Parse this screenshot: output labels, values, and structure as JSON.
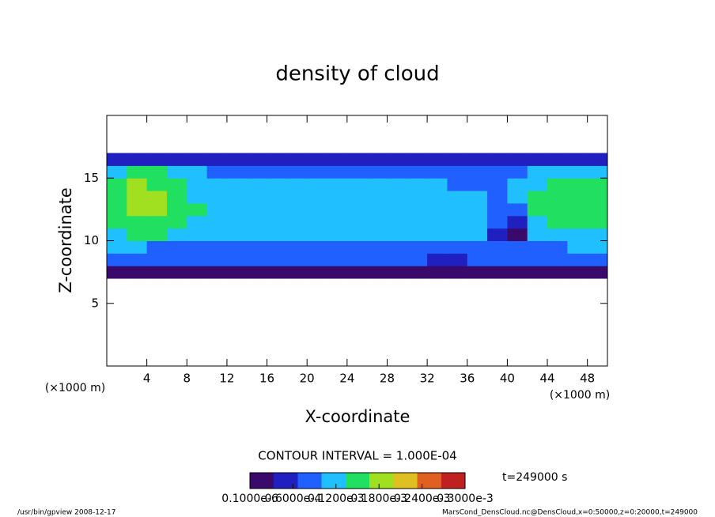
{
  "chart_data": {
    "type": "heatmap",
    "title": "density of cloud",
    "x_label": "X-coordinate",
    "y_label": "Z-coordinate",
    "x_unit": "(×1000 m)",
    "contour_interval": "CONTOUR INTERVAL = 1.000E-04",
    "time": "t=249000 s",
    "footer_left": "/usr/bin/gpview   2008-12-17",
    "footer_right": "MarsCond_DensCloud.nc@DensCloud,x=0:50000,z=0:20000,t=249000",
    "xlim": [
      0,
      50
    ],
    "xticks": [
      4,
      8,
      12,
      16,
      20,
      24,
      28,
      32,
      36,
      40,
      44,
      48
    ],
    "ylim": [
      0,
      20
    ],
    "yticks": [
      5,
      10,
      15
    ],
    "x": [
      1,
      3,
      5,
      7,
      9,
      11,
      13,
      15,
      17,
      19,
      21,
      23,
      25,
      27,
      29,
      31,
      33,
      35,
      37,
      39,
      41,
      43,
      45,
      47,
      49
    ],
    "y": [
      7.5,
      8.5,
      9.5,
      10.5,
      11.5,
      12.5,
      13.5,
      14.5,
      15.5,
      16.5
    ],
    "z": [
      [
        3e-05,
        3e-05,
        3e-05,
        3e-05,
        3e-05,
        3e-05,
        3e-05,
        3e-05,
        3e-05,
        3e-05,
        3e-05,
        3e-05,
        3e-05,
        3e-05,
        3e-05,
        3e-05,
        1e-05,
        2e-05,
        3e-05,
        3e-05,
        3e-05,
        3e-05,
        3e-05,
        3e-05,
        3e-05
      ],
      [
        7e-05,
        7e-05,
        7e-05,
        7e-05,
        7e-05,
        7e-05,
        7e-05,
        7e-05,
        7e-05,
        7e-05,
        7e-05,
        7e-05,
        7e-05,
        7e-05,
        7e-05,
        7e-05,
        5e-05,
        6e-05,
        7e-05,
        7e-05,
        7e-05,
        7e-05,
        7e-05,
        7e-05,
        7e-05
      ],
      [
        0.0001,
        0.0001,
        9e-05,
        9e-05,
        9e-05,
        9e-05,
        9e-05,
        9e-05,
        9e-05,
        9e-05,
        9e-05,
        9e-05,
        9e-05,
        9e-05,
        9e-05,
        9e-05,
        8e-05,
        9e-05,
        9e-05,
        9e-05,
        8e-05,
        9e-05,
        9e-05,
        0.0001,
        0.0001
      ],
      [
        0.00013,
        0.00014,
        0.00014,
        0.00013,
        0.00012,
        0.00011,
        0.00011,
        0.0001,
        0.0001,
        0.0001,
        0.0001,
        0.0001,
        0.00011,
        0.00011,
        0.00011,
        0.0001,
        0.0001,
        0.0001,
        0.0001,
        6e-05,
        3e-05,
        0.0001,
        0.00012,
        0.00013,
        0.00013
      ],
      [
        0.00015,
        0.00016,
        0.00016,
        0.00015,
        0.00013,
        0.00012,
        0.00011,
        0.00011,
        0.00011,
        0.00011,
        0.00012,
        0.00012,
        0.00012,
        0.00012,
        0.00011,
        0.00011,
        0.00011,
        0.0001,
        0.0001,
        8e-05,
        6e-05,
        0.00012,
        0.00014,
        0.00015,
        0.00015
      ],
      [
        0.00016,
        0.00017,
        0.00017,
        0.00016,
        0.00014,
        0.00012,
        0.00012,
        0.00012,
        0.00012,
        0.00012,
        0.00012,
        0.00012,
        0.00012,
        0.00012,
        0.00012,
        0.00011,
        0.00011,
        0.0001,
        0.0001,
        9e-05,
        9e-05,
        0.00014,
        0.00016,
        0.00016,
        0.00016
      ],
      [
        0.00016,
        0.00017,
        0.00017,
        0.00016,
        0.00013,
        0.00012,
        0.00012,
        0.00012,
        0.00012,
        0.00012,
        0.00011,
        0.00011,
        0.00011,
        0.00011,
        0.00011,
        0.00011,
        0.0001,
        0.0001,
        0.0001,
        9e-05,
        0.0001,
        0.00015,
        0.00016,
        0.00016,
        0.00016
      ],
      [
        0.00015,
        0.00017,
        0.00016,
        0.00015,
        0.00012,
        0.00011,
        0.00011,
        0.00011,
        0.00011,
        0.0001,
        0.0001,
        0.0001,
        0.0001,
        0.0001,
        0.0001,
        0.0001,
        0.0001,
        9e-05,
        9e-05,
        9e-05,
        0.0001,
        0.00013,
        0.00015,
        0.00016,
        0.00016
      ],
      [
        0.00012,
        0.00014,
        0.00014,
        0.00012,
        0.0001,
        9e-05,
        9e-05,
        9e-05,
        9e-05,
        8e-05,
        8e-05,
        8e-05,
        8e-05,
        8e-05,
        8e-05,
        8e-05,
        8e-05,
        8e-05,
        8e-05,
        8e-05,
        8e-05,
        0.0001,
        0.00012,
        0.00013,
        0.00013
      ],
      [
        4e-05,
        5e-05,
        5e-05,
        4e-05,
        4e-05,
        4e-05,
        4e-05,
        4e-05,
        4e-05,
        4e-05,
        4e-05,
        4e-05,
        4e-05,
        4e-05,
        4e-05,
        4e-05,
        4e-05,
        4e-05,
        4e-05,
        4e-05,
        4e-05,
        4e-05,
        4e-05,
        5e-05,
        5e-05
      ]
    ],
    "clim": [
      0,
      0.0003
    ],
    "colormap": [
      "#3a0a6a",
      "#2020c0",
      "#2060ff",
      "#20c0ff",
      "#20e060",
      "#a0e020",
      "#e0c020",
      "#e06020",
      "#c02020"
    ],
    "cticks": [
      {
        "value": 1e-07,
        "label": "0.1000e-6"
      },
      {
        "value": 6e-05,
        "label": "0.6000e-4"
      },
      {
        "value": 0.00012,
        "label": "0.1200e-3"
      },
      {
        "value": 0.00018,
        "label": "0.1800e-3"
      },
      {
        "value": 0.00024,
        "label": "0.2400e-3"
      },
      {
        "value": 0.0003,
        "label": "0.3000e-3"
      }
    ]
  }
}
